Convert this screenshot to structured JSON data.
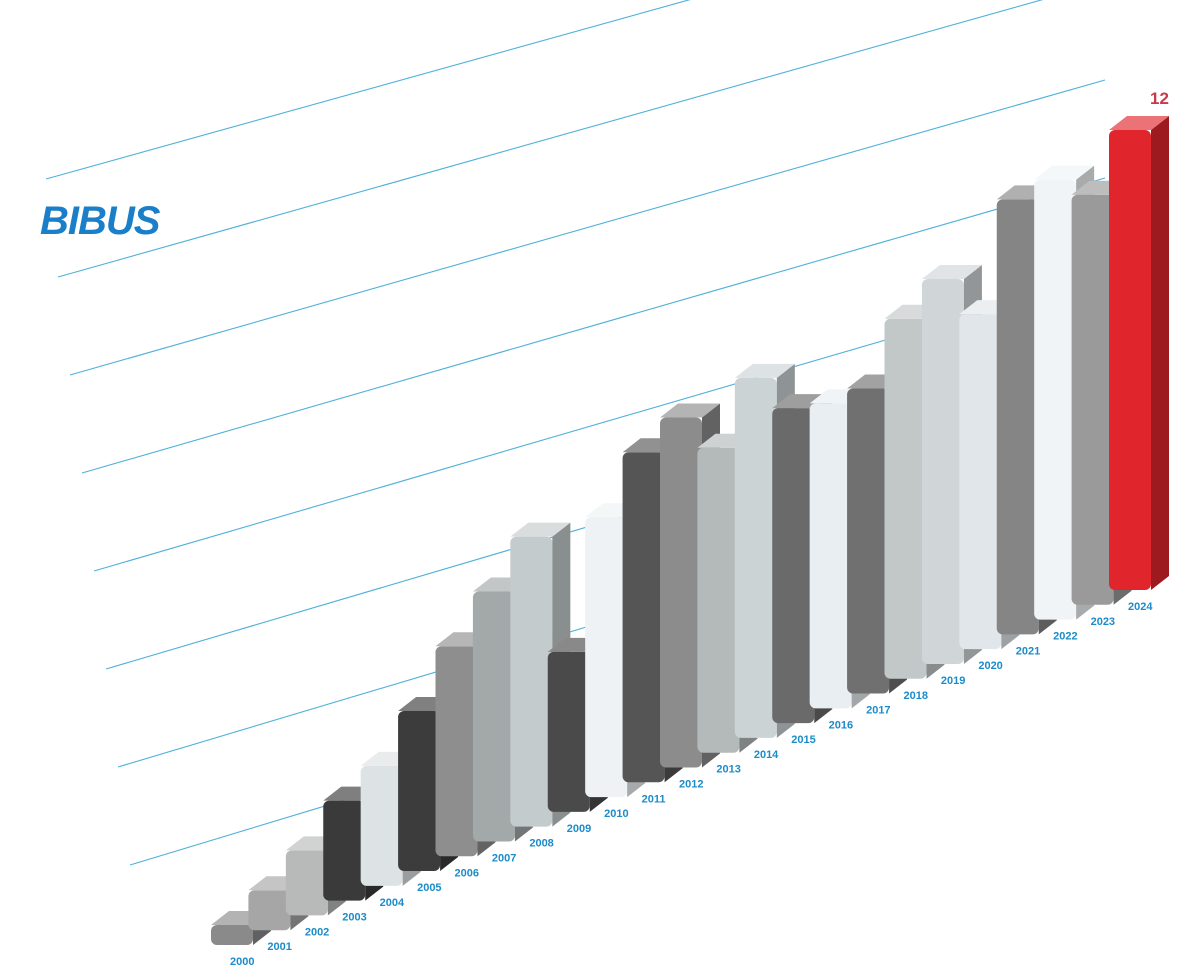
{
  "logo": {
    "text": "BIBUS",
    "color": "#1a7fc8"
  },
  "colors": {
    "gridline": "#4fb0d8",
    "year_label": "#1c8cc9",
    "highlight": "#e0262c",
    "value_label": "#c93a48"
  },
  "chart_data": {
    "type": "bar",
    "title": "",
    "xlabel": "",
    "ylabel": "",
    "grid": true,
    "categories": [
      "2000",
      "2001",
      "2002",
      "2003",
      "2004",
      "2005",
      "2006",
      "2007",
      "2008",
      "2009",
      "2010",
      "2011",
      "2012",
      "2013",
      "2014",
      "2015",
      "2016",
      "2017",
      "2018",
      "2019",
      "2020",
      "2021",
      "2022",
      "2023",
      "2024"
    ],
    "values": [
      0.4,
      0.8,
      1.3,
      2.0,
      2.4,
      3.2,
      4.2,
      5.0,
      5.8,
      3.2,
      5.6,
      6.6,
      7.0,
      6.1,
      7.2,
      6.3,
      6.1,
      6.1,
      7.2,
      7.7,
      6.7,
      8.7,
      8.8,
      8.2,
      9.2
    ],
    "bar_shades": [
      "#8a8a8a",
      "#a6a6a6",
      "#b8baba",
      "#3a3a3a",
      "#dde2e4",
      "#3c3c3c",
      "#8e8e8e",
      "#a3a8a8",
      "#c4cbcc",
      "#4a4a4a",
      "#eef2f4",
      "#555555",
      "#8c8c8c",
      "#b4b9b9",
      "#cbd3d5",
      "#6a6a6a",
      "#e8eef2",
      "#707070",
      "#c2c8c8",
      "#d0d6d8",
      "#e0e6ea",
      "#858585",
      "#f0f4f6",
      "#9a9a9a",
      "#e0262c"
    ],
    "annotations": [
      {
        "category": "2024",
        "text": "12"
      }
    ]
  }
}
